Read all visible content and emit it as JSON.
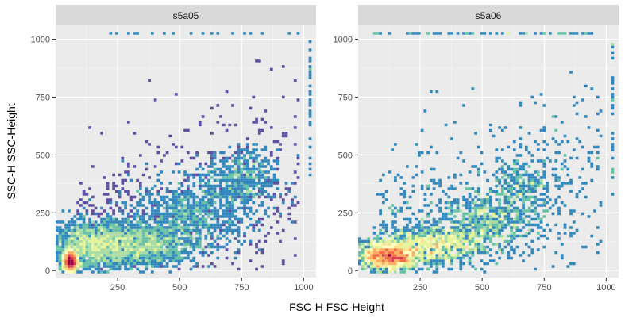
{
  "chart_data": {
    "type": "heatmap",
    "subtype": "faceted 2D bin density plot",
    "xlabel": "FSC-H FSC-Height",
    "ylabel": "SSC-H SSC-Height",
    "xlim": [
      0,
      1050
    ],
    "ylim": [
      -30,
      1060
    ],
    "x_ticks": [
      250,
      500,
      750,
      1000
    ],
    "y_ticks": [
      0,
      250,
      500,
      750,
      1000
    ],
    "x_tick_labels": [
      "250",
      "500",
      "750",
      "1000"
    ],
    "y_tick_labels": [
      "0",
      "250",
      "500",
      "750",
      "1000"
    ],
    "color_scale": [
      "#5e4fa2",
      "#3288bd",
      "#66c2a5",
      "#abdda4",
      "#e6f598",
      "#ffffbf",
      "#fee08b",
      "#fdae61",
      "#f46d43",
      "#d53e4f",
      "#9e0142"
    ],
    "panel_background": "#ebebeb",
    "strip_background": "#d9d9d9",
    "grid": true,
    "legend": "none",
    "facets": [
      {
        "name": "s5a05",
        "density_clusters": [
          {
            "x": 60,
            "y": 40,
            "sx": 14,
            "sy": 22,
            "density": 1.0
          },
          {
            "x": 150,
            "y": 110,
            "sx": 80,
            "sy": 50,
            "density": 0.6
          },
          {
            "x": 350,
            "y": 110,
            "sx": 110,
            "sy": 45,
            "density": 0.55
          },
          {
            "x": 550,
            "y": 250,
            "sx": 120,
            "sy": 70,
            "density": 0.3
          },
          {
            "x": 750,
            "y": 400,
            "sx": 70,
            "sy": 60,
            "density": 0.18
          }
        ],
        "saturation_lines": [
          {
            "axis": "y",
            "value": 1020,
            "from": 100,
            "to": 1020,
            "density": 0.08
          },
          {
            "axis": "x",
            "value": 1020,
            "from": 400,
            "to": 1000,
            "density": 0.15
          }
        ]
      },
      {
        "name": "s5a06",
        "density_clusters": [
          {
            "x": 120,
            "y": 60,
            "sx": 60,
            "sy": 30,
            "density": 0.55
          },
          {
            "x": 300,
            "y": 110,
            "sx": 110,
            "sy": 40,
            "density": 0.45
          },
          {
            "x": 520,
            "y": 220,
            "sx": 100,
            "sy": 60,
            "density": 0.22
          },
          {
            "x": 680,
            "y": 380,
            "sx": 70,
            "sy": 60,
            "density": 0.08
          }
        ],
        "saturation_lines": [
          {
            "axis": "y",
            "value": 1020,
            "from": 40,
            "to": 1000,
            "density": 0.25
          },
          {
            "axis": "x",
            "value": 1020,
            "from": 300,
            "to": 1000,
            "density": 0.12
          }
        ]
      }
    ]
  }
}
